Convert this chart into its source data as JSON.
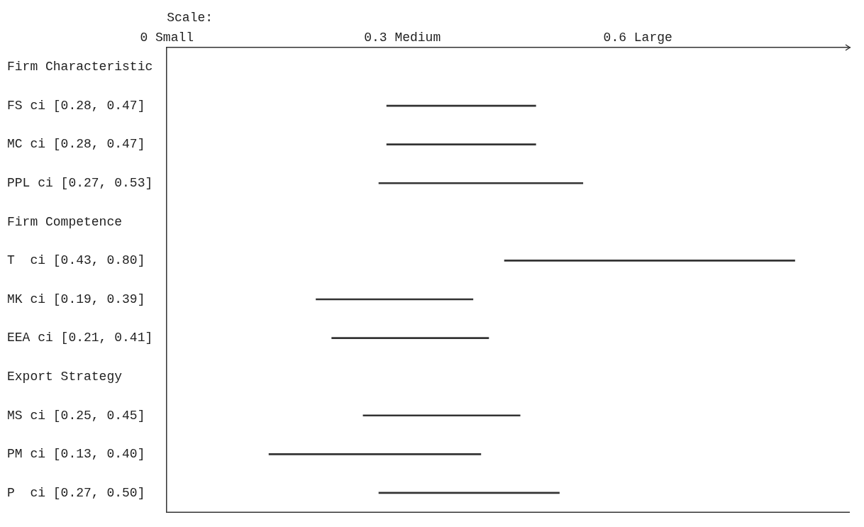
{
  "chart_data": {
    "type": "bar",
    "orientation": "horizontal",
    "xlabel": "Scale:",
    "categories": [
      "Firm Characteristic",
      "FS ci [0.28, 0.47]",
      "MC ci [0.28, 0.47]",
      "PPL ci [0.27, 0.53]",
      "Firm Competence",
      "T  ci [0.43, 0.80]",
      "MK ci [0.19, 0.39]",
      "EEA ci [0.21, 0.41]",
      "Export Strategy",
      "MS ci [0.25, 0.45]",
      "PM ci [0.13, 0.40]",
      "P  ci [0.27, 0.50]"
    ],
    "base": [
      null,
      0.28,
      0.28,
      0.27,
      null,
      0.43,
      0.19,
      0.21,
      null,
      0.25,
      0.13,
      0.27
    ],
    "values": [
      null,
      0.19,
      0.19,
      0.26,
      null,
      0.37,
      0.2,
      0.2,
      null,
      0.2,
      0.27,
      0.23
    ],
    "color": "#333333",
    "xlim": [
      0,
      0.87
    ],
    "xticks": [
      {
        "value": 0,
        "label": "0 Small"
      },
      {
        "value": 0.3,
        "label": "0.3 Medium"
      },
      {
        "value": 0.6,
        "label": "0.6 Large"
      }
    ],
    "grid": false,
    "legend": false
  }
}
